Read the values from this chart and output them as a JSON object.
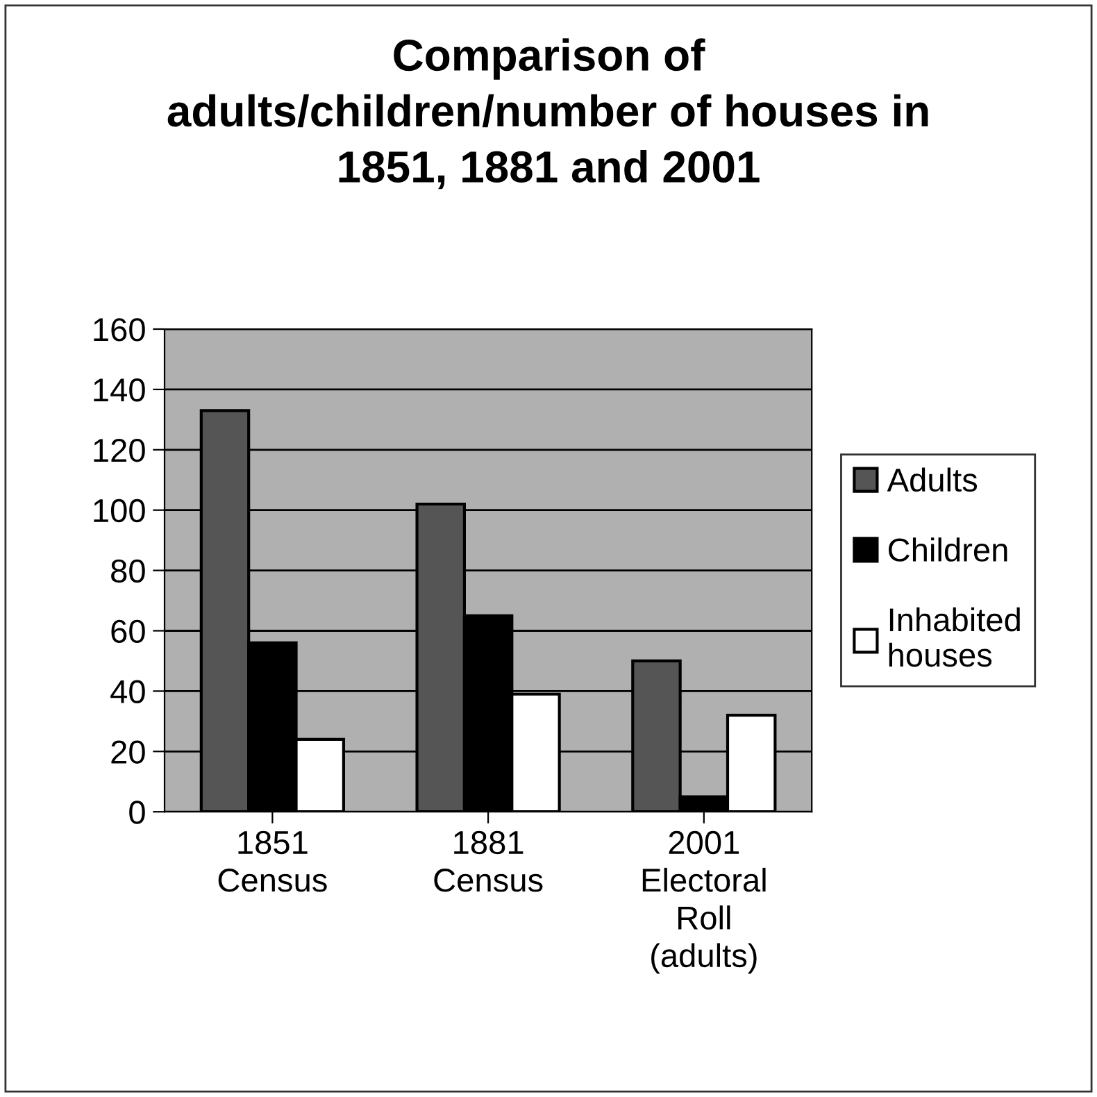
{
  "chart_data": {
    "type": "bar",
    "title": "Comparison of\nadults/children/number of houses in\n1851, 1881 and 2001",
    "categories": [
      "1851\nCensus",
      "1881\nCensus",
      "2001\nElectoral\nRoll\n(adults)"
    ],
    "series": [
      {
        "name": "Adults",
        "color": "#555555",
        "values": [
          133,
          102,
          50
        ]
      },
      {
        "name": "Children",
        "color": "#000000",
        "values": [
          56,
          65,
          5
        ]
      },
      {
        "name": "Inhabited\nhouses",
        "color": "#ffffff",
        "values": [
          24,
          39,
          32
        ]
      }
    ],
    "ylim": [
      0,
      160
    ],
    "yticks": [
      0,
      20,
      40,
      60,
      80,
      100,
      120,
      140,
      160
    ],
    "grid": "y",
    "legend": "right"
  }
}
